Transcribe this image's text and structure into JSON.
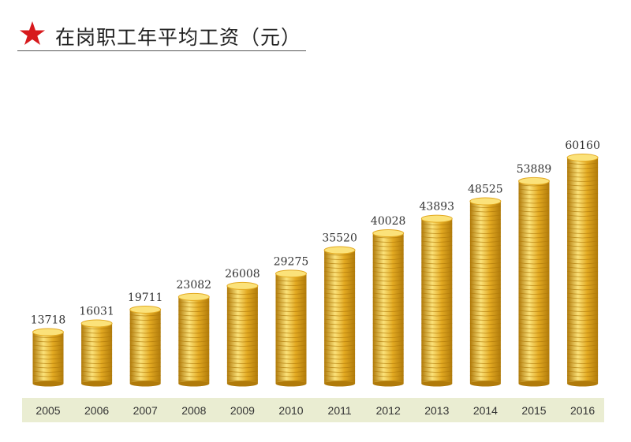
{
  "header": {
    "title": "在岗职工年平均工资（元）",
    "icon": "star-icon",
    "icon_color": "#d7191c"
  },
  "colors": {
    "coin_dark": "#b07a0a",
    "coin_mid": "#e3aa22",
    "coin_light": "#fbe27a",
    "axis_band": "#eaedd2",
    "label_text": "#333333"
  },
  "chart_data": {
    "type": "bar",
    "title": "在岗职工年平均工资（元）",
    "categories": [
      "2005",
      "2006",
      "2007",
      "2008",
      "2009",
      "2010",
      "2011",
      "2012",
      "2013",
      "2014",
      "2015",
      "2016"
    ],
    "values": [
      13718,
      16031,
      19711,
      23082,
      26008,
      29275,
      35520,
      40028,
      43893,
      48525,
      53889,
      60160
    ],
    "ylim": [
      0,
      62000
    ],
    "grid": false,
    "legend": "none"
  }
}
